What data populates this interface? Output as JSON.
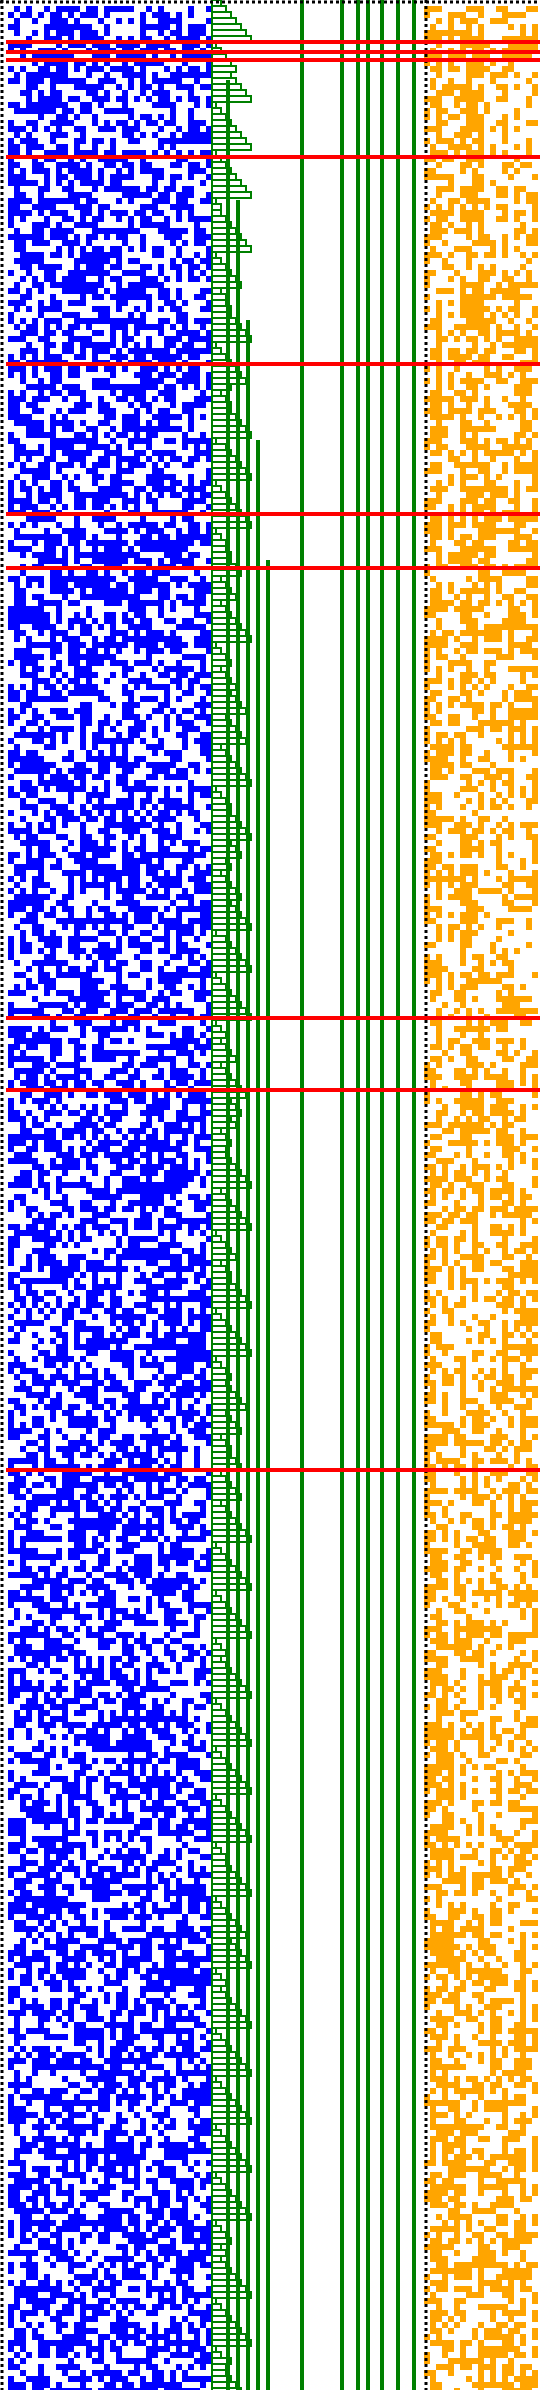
{
  "colors": {
    "background": "#ffffff",
    "blue_cells": "#0000ff",
    "green_structure": "#008000",
    "orange_cells": "#ffa500",
    "red_separator": "#ff0000",
    "dotted_border": "#000000"
  },
  "icons": [
    "dotted-border",
    "red-separator",
    "green-staircase",
    "green-column"
  ]
}
